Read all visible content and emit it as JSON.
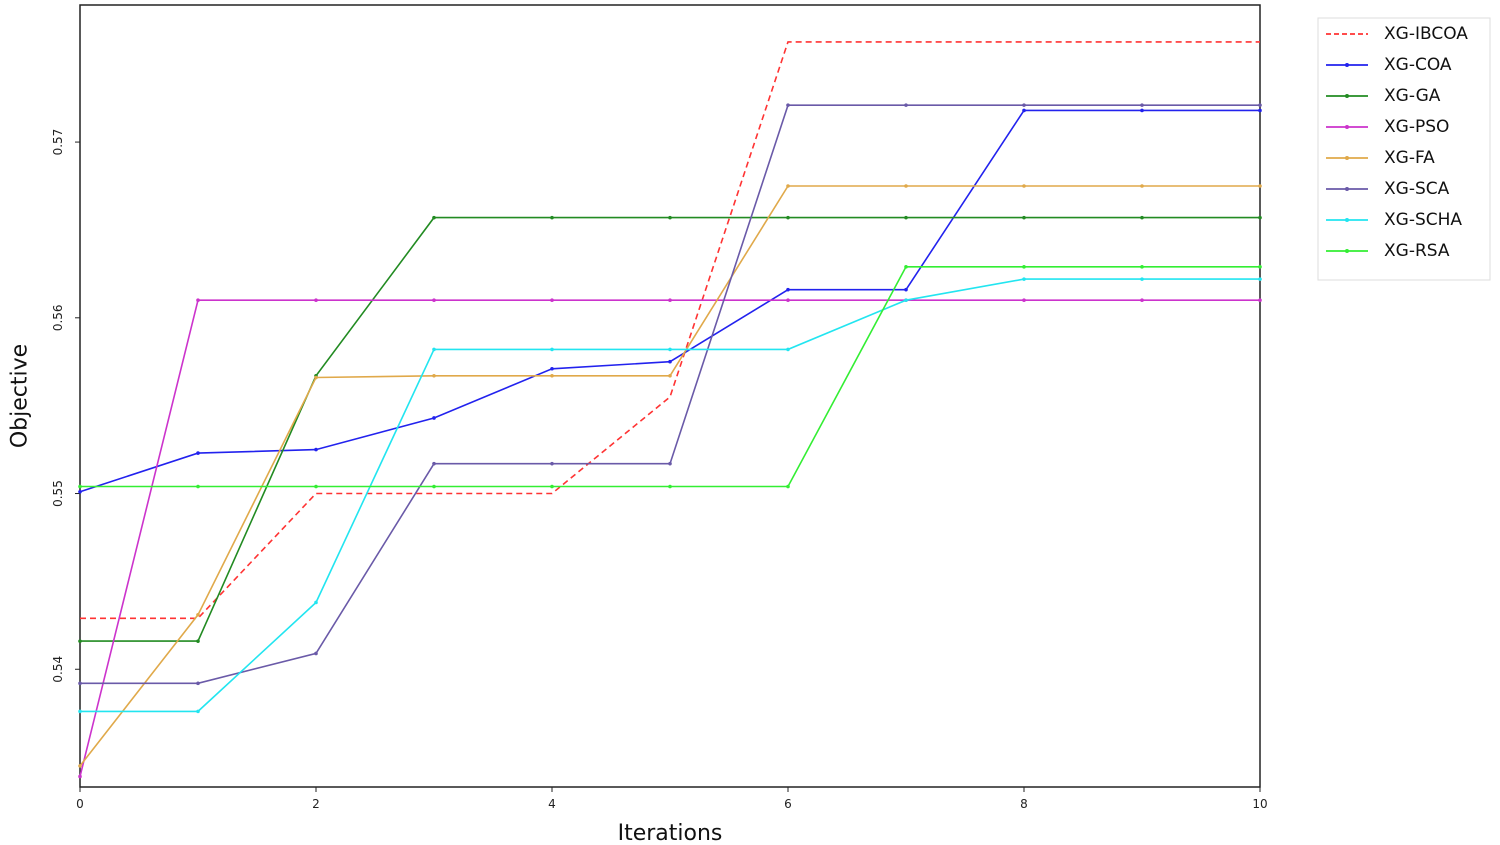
{
  "chart_data": {
    "type": "line",
    "title": "",
    "xlabel": "Iterations",
    "ylabel": "Objective",
    "xlim": [
      0,
      10
    ],
    "ylim": [
      0.5333,
      0.5778
    ],
    "xticks": [
      0,
      2,
      4,
      6,
      8,
      10
    ],
    "xtick_labels": [
      "0",
      "2",
      "4",
      "6",
      "8",
      "10"
    ],
    "yticks": [
      0.54,
      0.55,
      0.56,
      0.57
    ],
    "ytick_labels": [
      "0.54",
      "0.55",
      "0.56",
      "0.57"
    ],
    "grid": false,
    "legend_position": "outside-right-top",
    "x": [
      0,
      1,
      2,
      3,
      4,
      5,
      6,
      7,
      8,
      9,
      10
    ],
    "series": [
      {
        "name": "XG-IBCOA",
        "color": "#ff3333",
        "dashed": true,
        "values": [
          0.5429,
          0.5429,
          0.55,
          0.55,
          0.55,
          0.5555,
          0.5757,
          0.5757,
          0.5757,
          0.5757,
          0.5757
        ]
      },
      {
        "name": "XG-COA",
        "color": "#2222ee",
        "dashed": false,
        "values": [
          0.5501,
          0.5523,
          0.5525,
          0.5543,
          0.5571,
          0.5575,
          0.5616,
          0.5616,
          0.5718,
          0.5718,
          0.5718
        ]
      },
      {
        "name": "XG-GA",
        "color": "#228b22",
        "dashed": false,
        "values": [
          0.5416,
          0.5416,
          0.5567,
          0.5657,
          0.5657,
          0.5657,
          0.5657,
          0.5657,
          0.5657,
          0.5657,
          0.5657
        ]
      },
      {
        "name": "XG-PSO",
        "color": "#cc33cc",
        "dashed": false,
        "values": [
          0.5339,
          0.561,
          0.561,
          0.561,
          0.561,
          0.561,
          0.561,
          0.561,
          0.561,
          0.561,
          0.561
        ]
      },
      {
        "name": "XG-FA",
        "color": "#e0a94a",
        "dashed": false,
        "values": [
          0.5345,
          0.5431,
          0.5566,
          0.5567,
          0.5567,
          0.5567,
          0.5675,
          0.5675,
          0.5675,
          0.5675,
          0.5675
        ]
      },
      {
        "name": "XG-SCA",
        "color": "#6a5aa8",
        "dashed": false,
        "values": [
          0.5392,
          0.5392,
          0.5409,
          0.5517,
          0.5517,
          0.5517,
          0.5721,
          0.5721,
          0.5721,
          0.5721,
          0.5721
        ]
      },
      {
        "name": "XG-SCHA",
        "color": "#22e5f0",
        "dashed": false,
        "values": [
          0.5376,
          0.5376,
          0.5438,
          0.5582,
          0.5582,
          0.5582,
          0.5582,
          0.561,
          0.5622,
          0.5622,
          0.5622
        ]
      },
      {
        "name": "XG-RSA",
        "color": "#33ee33",
        "dashed": false,
        "values": [
          0.5504,
          0.5504,
          0.5504,
          0.5504,
          0.5504,
          0.5504,
          0.5504,
          0.5629,
          0.5629,
          0.5629,
          0.5629
        ]
      }
    ]
  }
}
